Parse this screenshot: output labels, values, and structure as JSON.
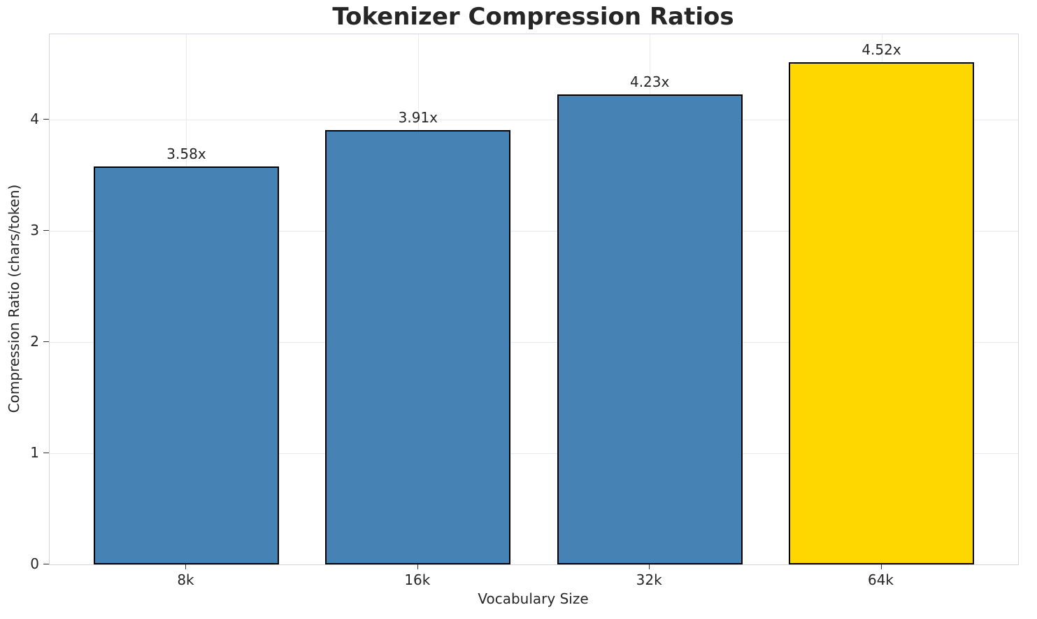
{
  "chart_data": {
    "type": "bar",
    "title": "Tokenizer Compression Ratios",
    "xlabel": "Vocabulary Size",
    "ylabel": "Compression Ratio (chars/token)",
    "categories": [
      "8k",
      "16k",
      "32k",
      "64k"
    ],
    "values": [
      3.58,
      3.91,
      4.23,
      4.52
    ],
    "bar_labels": [
      "3.58x",
      "3.91x",
      "4.23x",
      "4.52x"
    ],
    "bar_colors": [
      "#4682B4",
      "#4682B4",
      "#4682B4",
      "#FFD700"
    ],
    "edge_color": "#000000",
    "ylim": [
      0,
      4.77
    ],
    "xlim": [
      -0.59,
      3.59
    ],
    "yticks": [
      0,
      1,
      2,
      3,
      4
    ],
    "grid": true,
    "grid_color": "#e9e9f0",
    "background": "#ffffff",
    "legend": "none"
  }
}
